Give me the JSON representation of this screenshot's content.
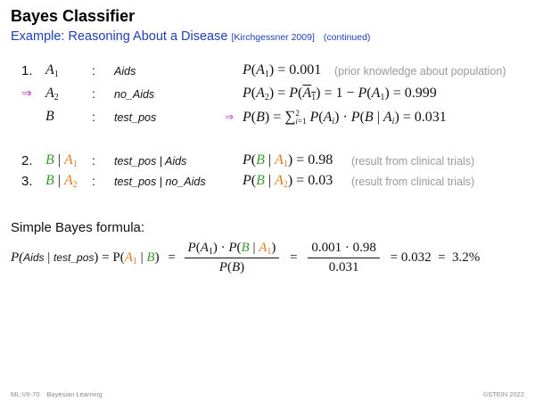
{
  "header": {
    "title": "Bayes Classifier",
    "subtitle": "Example: Reasoning About a Disease",
    "citation": "[Kirchgessner 2009]",
    "continued": "(continued)"
  },
  "rows": [
    {
      "number": "1.",
      "var_letter": "A",
      "var_sub": "1",
      "name": "Aids",
      "formula": "P(A₁) = 0.001",
      "note": "(prior knowledge about population)"
    },
    {
      "number": "⇒",
      "var_letter": "A",
      "var_sub": "2",
      "name": "no_Aids",
      "formula": "P(A₂) = P(A₁) = 1 − P(A₁) = 0.999"
    },
    {
      "number": "",
      "var_letter": "B",
      "var_sub": "",
      "name": "test_pos",
      "arrow": "⇒",
      "formula": "P(B) = ∑ᵢ₌₁² P(Aᵢ) · P(B | Aᵢ) = 0.031"
    },
    {
      "number": "2.",
      "var_letter": "B | A",
      "var_sub": "1",
      "name": "test_pos | Aids",
      "formula": "P(B | A₁) = 0.98",
      "note": "(result from clinical trials)"
    },
    {
      "number": "3.",
      "var_letter": "B | A",
      "var_sub": "2",
      "name": "test_pos | no_Aids",
      "formula": "P(B | A₂) = 0.03",
      "note": "(result from clinical trials)"
    }
  ],
  "bayes": {
    "heading": "Simple Bayes formula:",
    "lhs_P": "P(",
    "lhs_aids": "Aids",
    "lhs_bar": " | ",
    "lhs_testpos": "test_pos",
    "lhs_close": ") = P(",
    "lhs_A": "A",
    "lhs_sub": "1",
    "lhs_bar2": " | ",
    "lhs_B": "B",
    "lhs_end": ")",
    "eq1": "=",
    "frac1_num": "P(A₁) · P(B | A₁)",
    "frac1_den": "P(B)",
    "eq2": "=",
    "frac2_num": "0.001 · 0.98",
    "frac2_den": "0.031",
    "result": "= 0.032  =  3.2%"
  },
  "footer": {
    "left": "ML:VII-70",
    "topic": "Bayesian Learning",
    "right": "©STEIN 2022"
  }
}
